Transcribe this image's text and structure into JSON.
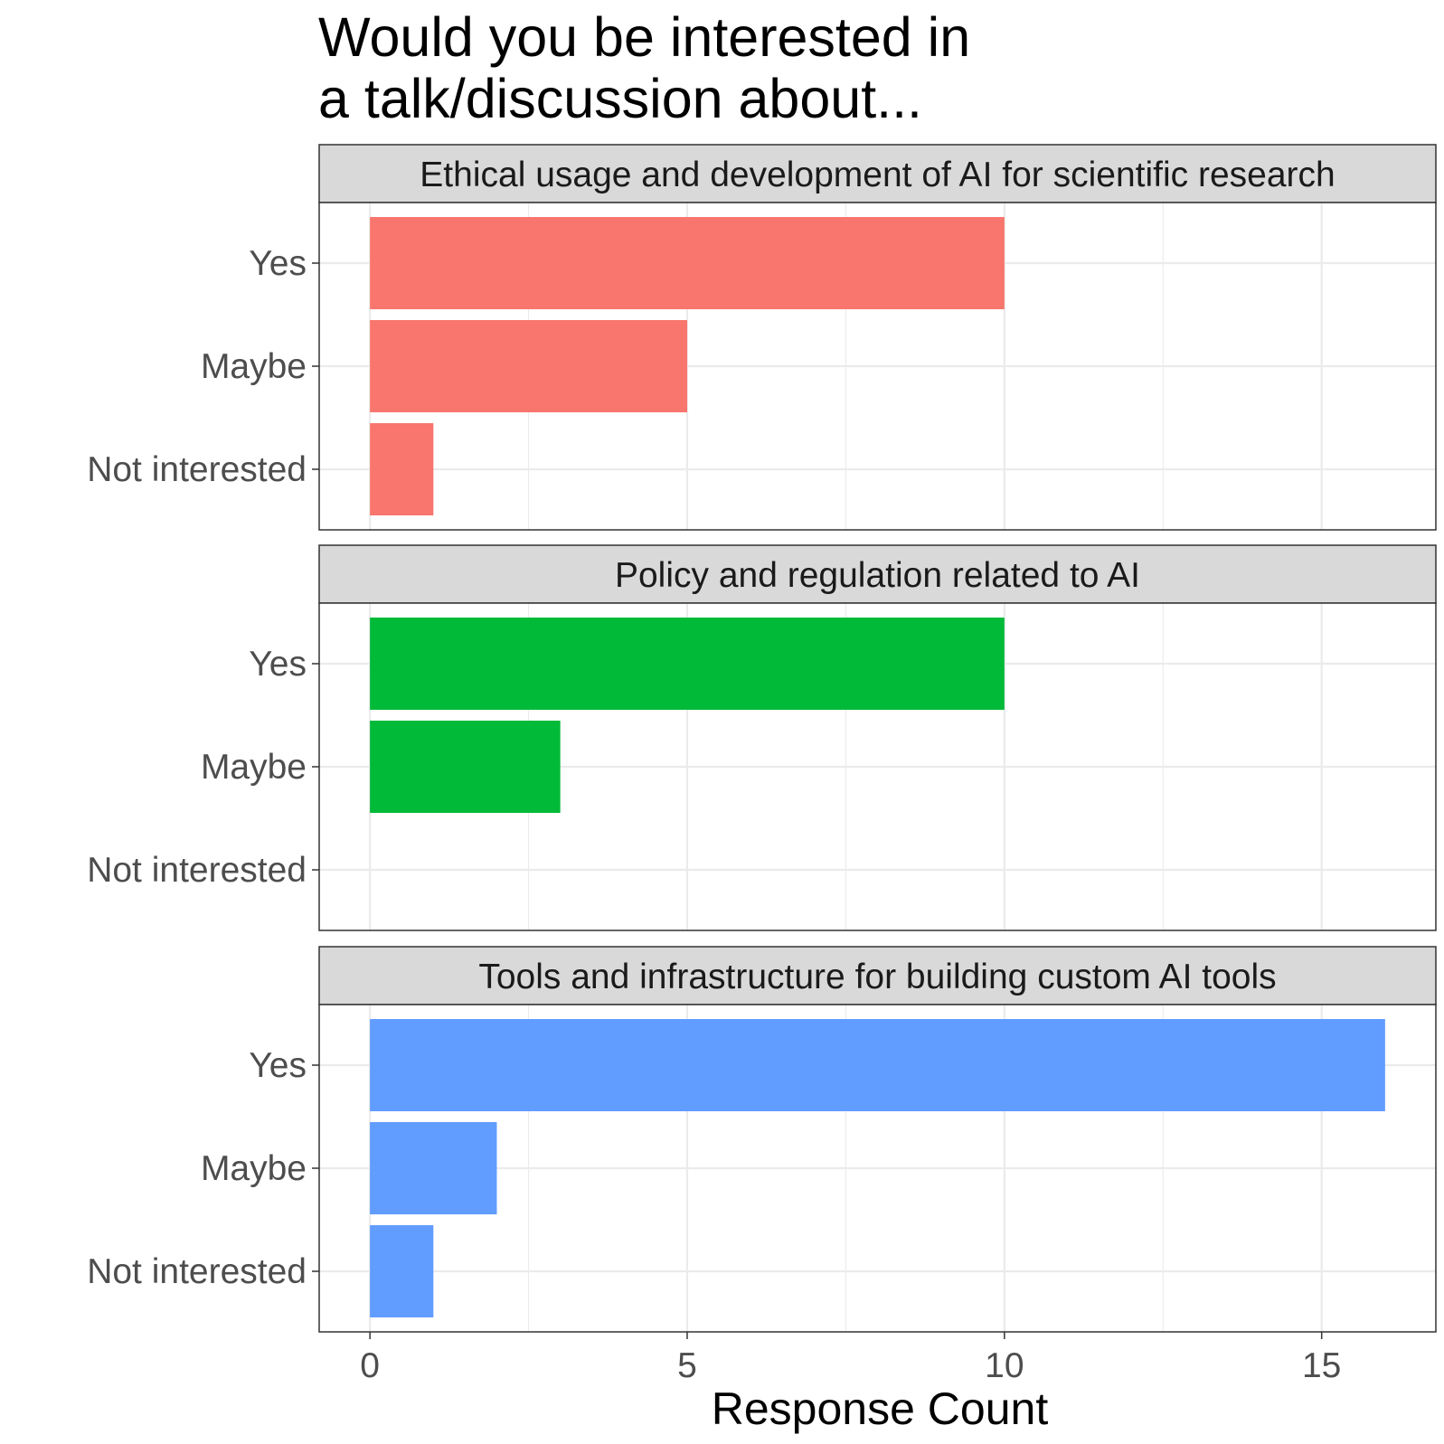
{
  "chart_data": {
    "type": "bar",
    "orientation": "horizontal",
    "title_lines": [
      "Would you be interested in",
      "a talk/discussion about..."
    ],
    "xlabel": "Response Count",
    "ylabel": "",
    "xlim": [
      -0.8,
      16.8
    ],
    "x_ticks": [
      0,
      5,
      10,
      15
    ],
    "categories": [
      "Yes",
      "Maybe",
      "Not interested"
    ],
    "grid": true,
    "facets": [
      {
        "label": "Ethical usage and development of AI for scientific research",
        "color": "#F8766D",
        "values": [
          10,
          5,
          1
        ]
      },
      {
        "label": "Policy and regulation related to AI",
        "color": "#00BA38",
        "values": [
          10,
          3,
          0
        ]
      },
      {
        "label": "Tools and infrastructure for building custom AI tools",
        "color": "#619CFF",
        "values": [
          16,
          2,
          1
        ]
      }
    ]
  }
}
